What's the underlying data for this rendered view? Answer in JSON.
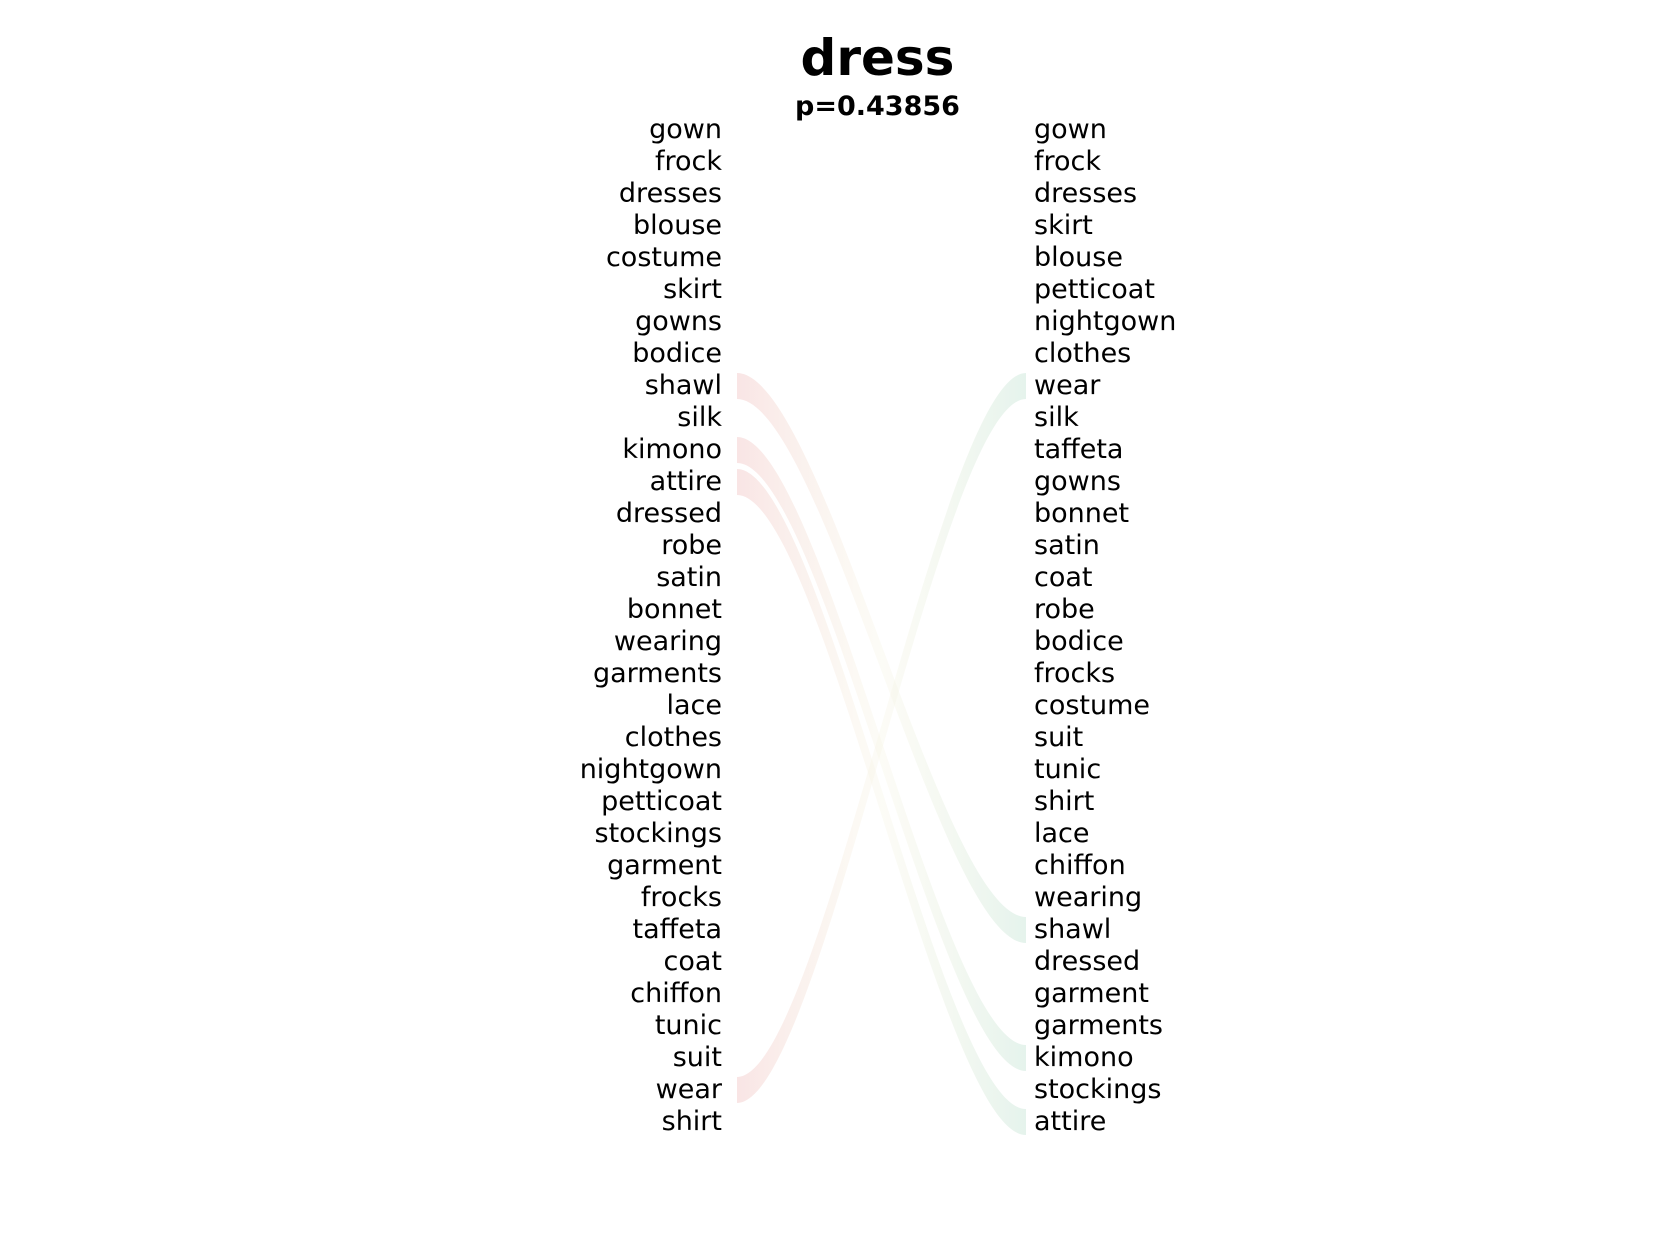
{
  "title": "dress",
  "subtitle": "p=0.43856",
  "left_words": [
    "gown",
    "frock",
    "dresses",
    "blouse",
    "costume",
    "skirt",
    "gowns",
    "bodice",
    "shawl",
    "silk",
    "kimono",
    "attire",
    "dressed",
    "robe",
    "satin",
    "bonnet",
    "wearing",
    "garments",
    "lace",
    "clothes",
    "nightgown",
    "petticoat",
    "stockings",
    "garment",
    "frocks",
    "taffeta",
    "coat",
    "chiffon",
    "tunic",
    "suit",
    "wear",
    "shirt"
  ],
  "right_words": [
    "gown",
    "frock",
    "dresses",
    "skirt",
    "blouse",
    "petticoat",
    "nightgown",
    "clothes",
    "wear",
    "silk",
    "taffeta",
    "gowns",
    "bonnet",
    "satin",
    "coat",
    "robe",
    "bodice",
    "frocks",
    "costume",
    "suit",
    "tunic",
    "shirt",
    "lace",
    "chiffon",
    "wearing",
    "shawl",
    "dressed",
    "garment",
    "garments",
    "kimono",
    "stockings",
    "attire"
  ],
  "links": [
    {
      "from": "shawl",
      "to": "shawl",
      "color": "#c0392b"
    },
    {
      "from": "kimono",
      "to": "kimono",
      "color": "#c0392b"
    },
    {
      "from": "attire",
      "to": "attire",
      "color": "#c0392b"
    },
    {
      "from": "wear",
      "to": "wear",
      "color": "#c0392b"
    }
  ],
  "link_colors": {
    "left": "#f5d6d6",
    "right": "#d6ece3"
  }
}
